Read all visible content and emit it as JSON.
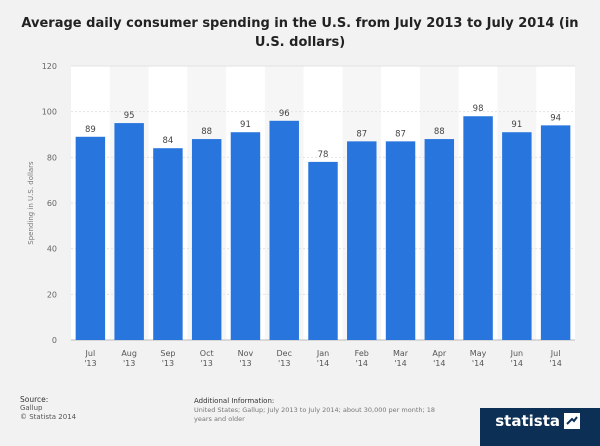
{
  "chart_data": {
    "type": "bar",
    "title": "Average daily consumer spending in the U.S. from July 2013 to July 2014 (in U.S. dollars)",
    "ylabel": "Spending in U.S. dollars",
    "ylim": [
      0,
      120
    ],
    "yticks": [
      0,
      20,
      40,
      60,
      80,
      100,
      120
    ],
    "categories": [
      [
        "Jul",
        "'13"
      ],
      [
        "Aug",
        "'13"
      ],
      [
        "Sep",
        "'13"
      ],
      [
        "Oct",
        "'13"
      ],
      [
        "Nov",
        "'13"
      ],
      [
        "Dec",
        "'13"
      ],
      [
        "Jan",
        "'14"
      ],
      [
        "Feb",
        "'14"
      ],
      [
        "Mar",
        "'14"
      ],
      [
        "Apr",
        "'14"
      ],
      [
        "May",
        "'14"
      ],
      [
        "Jun",
        "'14"
      ],
      [
        "Jul",
        "'14"
      ]
    ],
    "values": [
      89,
      95,
      84,
      88,
      91,
      96,
      78,
      87,
      87,
      88,
      98,
      91,
      94
    ],
    "bar_color": "#2876dd",
    "grid": true
  },
  "footer": {
    "source_label": "Source:",
    "source_lines": [
      "Gallup",
      "© Statista 2014"
    ],
    "info_label": "Additional Information:",
    "info_text": "United States; Gallup; July 2013 to July 2014; about 30,000 per month; 18 years and older"
  },
  "brand": {
    "name": "statista",
    "icon": "statista-logo-icon"
  }
}
